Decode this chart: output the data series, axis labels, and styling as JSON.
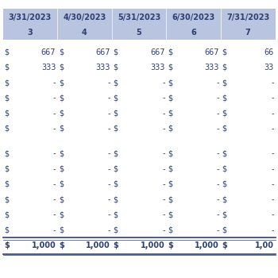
{
  "header_dates": [
    "3/31/2023",
    "4/30/2023",
    "5/31/2023",
    "6/30/2023",
    "7/31/2023"
  ],
  "header_nums": [
    "3",
    "4",
    "5",
    "6",
    "7"
  ],
  "header_bg": "#b8c4e0",
  "body_bg": "#ffffff",
  "row_data": [
    [
      "$",
      "667",
      "$",
      "667",
      "$",
      "667",
      "$",
      "667",
      "$",
      "66"
    ],
    [
      "$",
      "333",
      "$",
      "333",
      "$",
      "333",
      "$",
      "333",
      "$",
      "33"
    ],
    [
      "$",
      "-",
      "$",
      "-",
      "$",
      "-",
      "$",
      "-",
      "$",
      "-"
    ],
    [
      "$",
      "-",
      "$",
      "-",
      "$",
      "-",
      "$",
      "-",
      "$",
      "-"
    ],
    [
      "$",
      "-",
      "$",
      "-",
      "$",
      "-",
      "$",
      "-",
      "$",
      "-"
    ],
    [
      "$",
      "-",
      "$",
      "-",
      "$",
      "-",
      "$",
      "-",
      "$",
      "-"
    ]
  ],
  "row_data2": [
    [
      "$",
      "-",
      "$",
      "-",
      "$",
      "-",
      "$",
      "-",
      "$",
      "-"
    ],
    [
      "$",
      "-",
      "$",
      "-",
      "$",
      "-",
      "$",
      "-",
      "$",
      "-"
    ],
    [
      "$",
      "-",
      "$",
      "-",
      "$",
      "-",
      "$",
      "-",
      "$",
      "-"
    ],
    [
      "$",
      "-",
      "$",
      "-",
      "$",
      "-",
      "$",
      "-",
      "$",
      "-"
    ],
    [
      "$",
      "-",
      "$",
      "-",
      "$",
      "-",
      "$",
      "-",
      "$",
      "-"
    ],
    [
      "$",
      "-",
      "$",
      "-",
      "$",
      "-",
      "$",
      "-",
      "$",
      "-"
    ]
  ],
  "total_row": [
    "$",
    "1,000",
    "$",
    "1,000",
    "$",
    "1,000",
    "$",
    "1,000",
    "$",
    "1,00"
  ],
  "font_size": 7,
  "header_font_size": 7,
  "text_color": "#2e3f6f",
  "total_border_color": "#2e3f6f"
}
